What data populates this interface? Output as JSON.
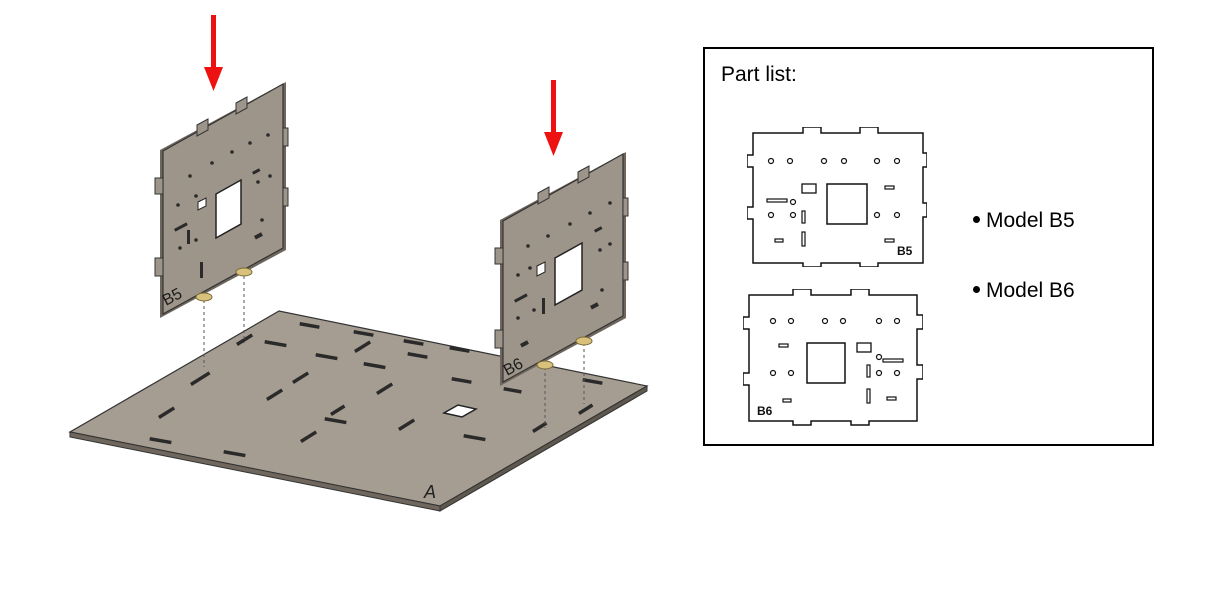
{
  "scene": {
    "base_label": "A",
    "panel_b5_label": "B5",
    "panel_b6_label": "B6",
    "arrow_color": "#ee1111",
    "panel_color": "#9e958a",
    "base_color": "#a69d92",
    "peg_color": "#d8c17a"
  },
  "part_list": {
    "title": "Part list:",
    "drawing_b5_label": "B5",
    "drawing_b6_label": "B6",
    "items": [
      {
        "label": "Model B5"
      },
      {
        "label": "Model B6"
      }
    ]
  }
}
